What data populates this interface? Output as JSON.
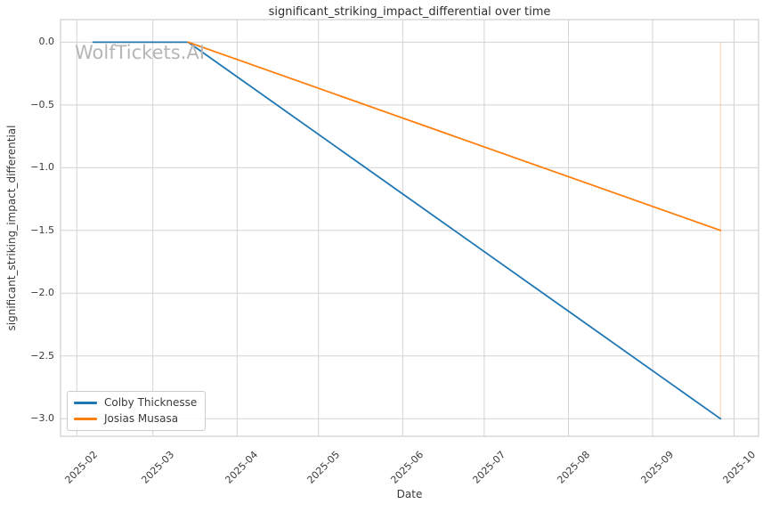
{
  "watermark": "WolfTickets.AI",
  "colors": {
    "background": "#ffffff",
    "grid": "#d3d3d3",
    "axis_border": "#cfcfcf",
    "text": "#3a3a3a",
    "title_text": "#2e2e2e",
    "watermark_text": "#b6b6b6",
    "legend_border": "#cccccc",
    "series_blue": "#1f77b4",
    "series_orange": "#ff7f0e"
  },
  "chart_data": {
    "type": "line",
    "title": "significant_striking_impact_differential over time",
    "xlabel": "Date",
    "ylabel": "significant_striking_impact_differential",
    "grid": true,
    "legend_position": "lower left",
    "xlim": [
      "2025-01-26",
      "2025-10-10"
    ],
    "ylim": [
      -3.14,
      0.18
    ],
    "x_ticks": [
      {
        "label": "2025-02",
        "date": "2025-02-01"
      },
      {
        "label": "2025-03",
        "date": "2025-03-01"
      },
      {
        "label": "2025-04",
        "date": "2025-04-01"
      },
      {
        "label": "2025-05",
        "date": "2025-05-01"
      },
      {
        "label": "2025-06",
        "date": "2025-06-01"
      },
      {
        "label": "2025-07",
        "date": "2025-07-01"
      },
      {
        "label": "2025-08",
        "date": "2025-08-01"
      },
      {
        "label": "2025-09",
        "date": "2025-09-01"
      },
      {
        "label": "2025-10",
        "date": "2025-10-01"
      }
    ],
    "y_ticks": [
      {
        "value": 0.0,
        "label": "0.0"
      },
      {
        "value": -0.5,
        "label": "−0.5"
      },
      {
        "value": -1.0,
        "label": "−1.0"
      },
      {
        "value": -1.5,
        "label": "−1.5"
      },
      {
        "value": -2.0,
        "label": "−2.0"
      },
      {
        "value": -2.5,
        "label": "−2.5"
      },
      {
        "value": -3.0,
        "label": "−3.0"
      }
    ],
    "series": [
      {
        "name": "Colby Thicknesse",
        "color": "#1f77b4",
        "points": [
          {
            "date": "2025-02-07",
            "value": 0.0
          },
          {
            "date": "2025-03-14",
            "value": 0.0
          },
          {
            "date": "2025-09-26",
            "value": -3.0
          }
        ]
      },
      {
        "name": "Josias Musasa",
        "color": "#ff7f0e",
        "points": [
          {
            "date": "2025-03-14",
            "value": 0.0
          },
          {
            "date": "2025-09-26",
            "value": -1.5
          }
        ]
      }
    ],
    "annotations": [
      {
        "type": "vline",
        "date": "2025-09-26",
        "from": 0.0,
        "to": -3.0,
        "color": "#ff7f0e",
        "opacity": 0.3
      }
    ]
  }
}
